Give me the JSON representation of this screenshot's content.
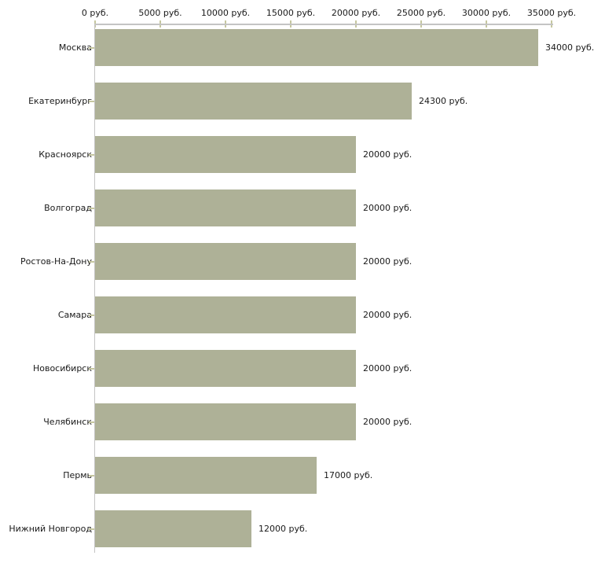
{
  "chart_data": {
    "type": "bar",
    "orientation": "horizontal",
    "title": "",
    "xlabel": "",
    "ylabel": "",
    "unit": "руб.",
    "categories": [
      "Москва",
      "Екатеринбург",
      "Красноярск",
      "Волгоград",
      "Ростов-На-Дону",
      "Самара",
      "Новосибирск",
      "Челябинск",
      "Пермь",
      "Нижний Новгород"
    ],
    "values": [
      34000,
      24300,
      20000,
      20000,
      20000,
      20000,
      20000,
      20000,
      17000,
      12000
    ],
    "value_labels": [
      "34000 руб.",
      "24300 руб.",
      "20000 руб.",
      "20000 руб.",
      "20000 руб.",
      "20000 руб.",
      "20000 руб.",
      "20000 руб.",
      "17000 руб.",
      "12000 руб."
    ],
    "x_axis": {
      "position": "top",
      "range": [
        0,
        35000
      ],
      "ticks": [
        0,
        5000,
        10000,
        15000,
        20000,
        25000,
        30000,
        35000
      ],
      "tick_labels": [
        "0 руб.",
        "5000 руб.",
        "10000 руб.",
        "15000 руб.",
        "20000 руб.",
        "25000 руб.",
        "30000 руб.",
        "35000 руб."
      ]
    },
    "grid": false,
    "legend": false,
    "colors": {
      "bar": "#aeb197",
      "axis": "#c4c4c4",
      "tick": "#c6c7a0",
      "text": "#1a1a1a",
      "background": "#ffffff"
    }
  }
}
